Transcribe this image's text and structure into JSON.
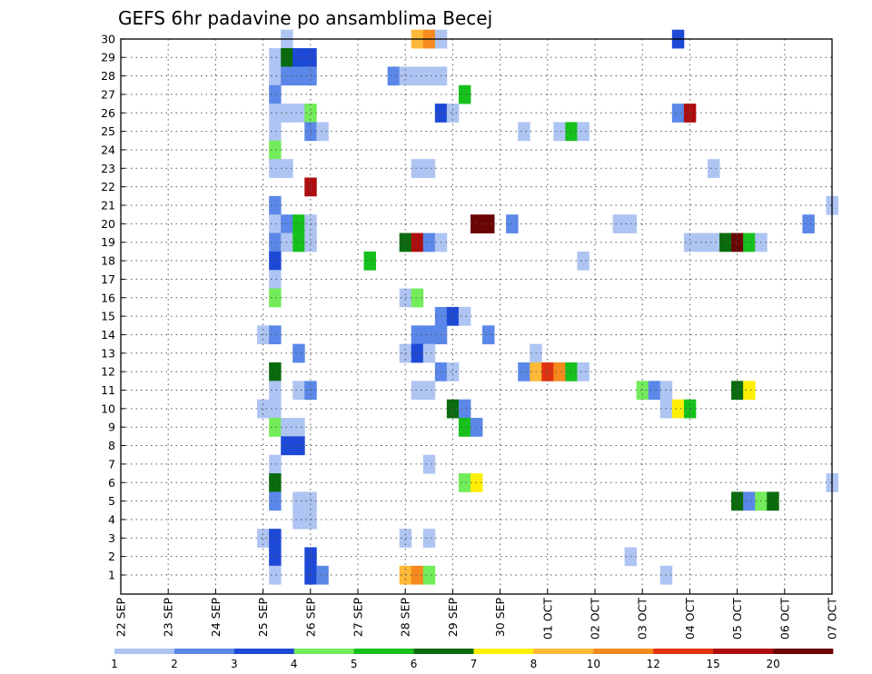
{
  "chart_data": {
    "type": "heatmap",
    "title": "GEFS 6hr padavine po ansamblima Becej",
    "xlabel": "",
    "ylabel": "",
    "x_ticks": [
      "22 SEP",
      "23 SEP",
      "24 SEP",
      "25 SEP",
      "26 SEP",
      "27 SEP",
      "28 SEP",
      "29 SEP",
      "30 SEP",
      "01 OCT",
      "02 OCT",
      "03 OCT",
      "04 OCT",
      "05 OCT",
      "06 OCT",
      "07 OCT"
    ],
    "y_ticks": [
      "1",
      "2",
      "3",
      "4",
      "5",
      "6",
      "7",
      "8",
      "9",
      "10",
      "11",
      "12",
      "13",
      "14",
      "15",
      "16",
      "17",
      "18",
      "19",
      "20",
      "21",
      "22",
      "23",
      "24",
      "25",
      "26",
      "27",
      "28",
      "29",
      "30"
    ],
    "time_step_hours": 6,
    "grid": true,
    "legend_position": "bottom",
    "legend": {
      "labels": [
        "1",
        "2",
        "3",
        "4",
        "5",
        "6",
        "7",
        "8",
        "10",
        "12",
        "15",
        "20"
      ],
      "colors": [
        "#aec4f2",
        "#5b88e8",
        "#1d49d7",
        "#72ec5a",
        "#16c01d",
        "#096b0d",
        "#ffef05",
        "#ffb938",
        "#f68a1e",
        "#e0330f",
        "#ae0d0d",
        "#6a0505"
      ]
    },
    "cells": [
      [
        30,
        "25 SEP 12",
        1
      ],
      [
        30,
        "28 SEP 06",
        8
      ],
      [
        30,
        "28 SEP 12",
        10
      ],
      [
        30,
        "28 SEP 18",
        1
      ],
      [
        30,
        "03 OCT 18",
        3
      ],
      [
        29,
        "25 SEP 06",
        1
      ],
      [
        29,
        "25 SEP 12",
        6
      ],
      [
        29,
        "25 SEP 18",
        3
      ],
      [
        29,
        "26 SEP 00",
        3
      ],
      [
        28,
        "25 SEP 06",
        1
      ],
      [
        28,
        "25 SEP 12",
        2
      ],
      [
        28,
        "25 SEP 18",
        2
      ],
      [
        28,
        "26 SEP 00",
        2
      ],
      [
        28,
        "27 SEP 18",
        2
      ],
      [
        28,
        "28 SEP 00",
        1
      ],
      [
        28,
        "28 SEP 06",
        1
      ],
      [
        28,
        "28 SEP 12",
        1
      ],
      [
        28,
        "28 SEP 18",
        1
      ],
      [
        27,
        "25 SEP 06",
        2
      ],
      [
        27,
        "29 SEP 06",
        5
      ],
      [
        26,
        "25 SEP 06",
        1
      ],
      [
        26,
        "25 SEP 12",
        1
      ],
      [
        26,
        "25 SEP 18",
        1
      ],
      [
        26,
        "26 SEP 00",
        4
      ],
      [
        26,
        "28 SEP 18",
        3
      ],
      [
        26,
        "29 SEP 00",
        1
      ],
      [
        26,
        "03 OCT 18",
        2
      ],
      [
        26,
        "04 OCT 00",
        15
      ],
      [
        25,
        "25 SEP 06",
        1
      ],
      [
        25,
        "26 SEP 00",
        2
      ],
      [
        25,
        "26 SEP 06",
        1
      ],
      [
        25,
        "30 SEP 12",
        1
      ],
      [
        25,
        "01 OCT 06",
        1
      ],
      [
        25,
        "01 OCT 12",
        5
      ],
      [
        25,
        "01 OCT 18",
        1
      ],
      [
        24,
        "25 SEP 06",
        4
      ],
      [
        23,
        "25 SEP 06",
        1
      ],
      [
        23,
        "25 SEP 12",
        1
      ],
      [
        23,
        "28 SEP 06",
        1
      ],
      [
        23,
        "28 SEP 12",
        1
      ],
      [
        23,
        "04 OCT 12",
        1
      ],
      [
        22,
        "26 SEP 00",
        15
      ],
      [
        21,
        "25 SEP 06",
        2
      ],
      [
        21,
        "07 OCT 00",
        1
      ],
      [
        20,
        "25 SEP 06",
        1
      ],
      [
        20,
        "25 SEP 12",
        2
      ],
      [
        20,
        "25 SEP 18",
        5
      ],
      [
        20,
        "26 SEP 00",
        1
      ],
      [
        20,
        "29 SEP 12",
        20
      ],
      [
        20,
        "29 SEP 18",
        20
      ],
      [
        20,
        "30 SEP 06",
        2
      ],
      [
        20,
        "02 OCT 12",
        1
      ],
      [
        20,
        "02 OCT 18",
        1
      ],
      [
        20,
        "06 OCT 12",
        2
      ],
      [
        19,
        "25 SEP 06",
        2
      ],
      [
        19,
        "25 SEP 12",
        1
      ],
      [
        19,
        "25 SEP 18",
        5
      ],
      [
        19,
        "26 SEP 00",
        1
      ],
      [
        19,
        "28 SEP 00",
        6
      ],
      [
        19,
        "28 SEP 06",
        15
      ],
      [
        19,
        "28 SEP 12",
        2
      ],
      [
        19,
        "28 SEP 18",
        1
      ],
      [
        19,
        "04 OCT 00",
        1
      ],
      [
        19,
        "04 OCT 06",
        1
      ],
      [
        19,
        "04 OCT 12",
        1
      ],
      [
        19,
        "04 OCT 18",
        6
      ],
      [
        19,
        "05 OCT 00",
        20
      ],
      [
        19,
        "05 OCT 06",
        5
      ],
      [
        19,
        "05 OCT 12",
        1
      ],
      [
        18,
        "25 SEP 06",
        3
      ],
      [
        18,
        "27 SEP 06",
        5
      ],
      [
        18,
        "01 OCT 18",
        1
      ],
      [
        17,
        "25 SEP 06",
        1
      ],
      [
        16,
        "25 SEP 06",
        4
      ],
      [
        16,
        "28 SEP 00",
        1
      ],
      [
        16,
        "28 SEP 06",
        4
      ],
      [
        15,
        "28 SEP 18",
        2
      ],
      [
        15,
        "29 SEP 00",
        3
      ],
      [
        15,
        "29 SEP 06",
        1
      ],
      [
        14,
        "25 SEP 00",
        1
      ],
      [
        14,
        "25 SEP 06",
        2
      ],
      [
        14,
        "28 SEP 06",
        2
      ],
      [
        14,
        "28 SEP 12",
        2
      ],
      [
        14,
        "28 SEP 18",
        2
      ],
      [
        14,
        "29 SEP 18",
        2
      ],
      [
        13,
        "25 SEP 18",
        2
      ],
      [
        13,
        "28 SEP 00",
        1
      ],
      [
        13,
        "28 SEP 06",
        3
      ],
      [
        13,
        "28 SEP 12",
        1
      ],
      [
        13,
        "30 SEP 18",
        1
      ],
      [
        12,
        "25 SEP 06",
        6
      ],
      [
        12,
        "28 SEP 18",
        2
      ],
      [
        12,
        "29 SEP 00",
        1
      ],
      [
        12,
        "30 SEP 12",
        2
      ],
      [
        12,
        "30 SEP 18",
        8
      ],
      [
        12,
        "01 OCT 00",
        12
      ],
      [
        12,
        "01 OCT 06",
        10
      ],
      [
        12,
        "01 OCT 12",
        5
      ],
      [
        12,
        "01 OCT 18",
        1
      ],
      [
        11,
        "25 SEP 06",
        1
      ],
      [
        11,
        "25 SEP 18",
        1
      ],
      [
        11,
        "26 SEP 00",
        2
      ],
      [
        11,
        "28 SEP 06",
        1
      ],
      [
        11,
        "28 SEP 12",
        1
      ],
      [
        11,
        "03 OCT 00",
        4
      ],
      [
        11,
        "03 OCT 06",
        2
      ],
      [
        11,
        "03 OCT 12",
        1
      ],
      [
        11,
        "05 OCT 00",
        6
      ],
      [
        11,
        "05 OCT 06",
        7
      ],
      [
        10,
        "25 SEP 00",
        1
      ],
      [
        10,
        "25 SEP 06",
        1
      ],
      [
        10,
        "29 SEP 00",
        6
      ],
      [
        10,
        "29 SEP 06",
        2
      ],
      [
        10,
        "03 OCT 12",
        1
      ],
      [
        10,
        "03 OCT 18",
        7
      ],
      [
        10,
        "04 OCT 00",
        5
      ],
      [
        9,
        "25 SEP 06",
        4
      ],
      [
        9,
        "25 SEP 12",
        1
      ],
      [
        9,
        "25 SEP 18",
        1
      ],
      [
        9,
        "29 SEP 06",
        5
      ],
      [
        9,
        "29 SEP 12",
        2
      ],
      [
        8,
        "25 SEP 12",
        3
      ],
      [
        8,
        "25 SEP 18",
        3
      ],
      [
        7,
        "25 SEP 06",
        1
      ],
      [
        7,
        "28 SEP 12",
        1
      ],
      [
        6,
        "25 SEP 06",
        6
      ],
      [
        6,
        "29 SEP 06",
        4
      ],
      [
        6,
        "29 SEP 12",
        7
      ],
      [
        6,
        "07 OCT 00",
        1
      ],
      [
        5,
        "25 SEP 06",
        2
      ],
      [
        5,
        "25 SEP 18",
        1
      ],
      [
        5,
        "26 SEP 00",
        1
      ],
      [
        5,
        "05 OCT 00",
        6
      ],
      [
        5,
        "05 OCT 06",
        2
      ],
      [
        5,
        "05 OCT 12",
        4
      ],
      [
        5,
        "05 OCT 18",
        6
      ],
      [
        4,
        "25 SEP 18",
        1
      ],
      [
        4,
        "26 SEP 00",
        1
      ],
      [
        3,
        "25 SEP 00",
        1
      ],
      [
        3,
        "25 SEP 06",
        3
      ],
      [
        3,
        "28 SEP 00",
        1
      ],
      [
        3,
        "28 SEP 12",
        1
      ],
      [
        2,
        "25 SEP 06",
        3
      ],
      [
        2,
        "26 SEP 00",
        3
      ],
      [
        2,
        "02 OCT 18",
        1
      ],
      [
        1,
        "25 SEP 06",
        1
      ],
      [
        1,
        "26 SEP 00",
        3
      ],
      [
        1,
        "26 SEP 06",
        2
      ],
      [
        1,
        "28 SEP 00",
        8
      ],
      [
        1,
        "28 SEP 06",
        10
      ],
      [
        1,
        "28 SEP 12",
        4
      ],
      [
        1,
        "03 OCT 12",
        1
      ]
    ]
  }
}
